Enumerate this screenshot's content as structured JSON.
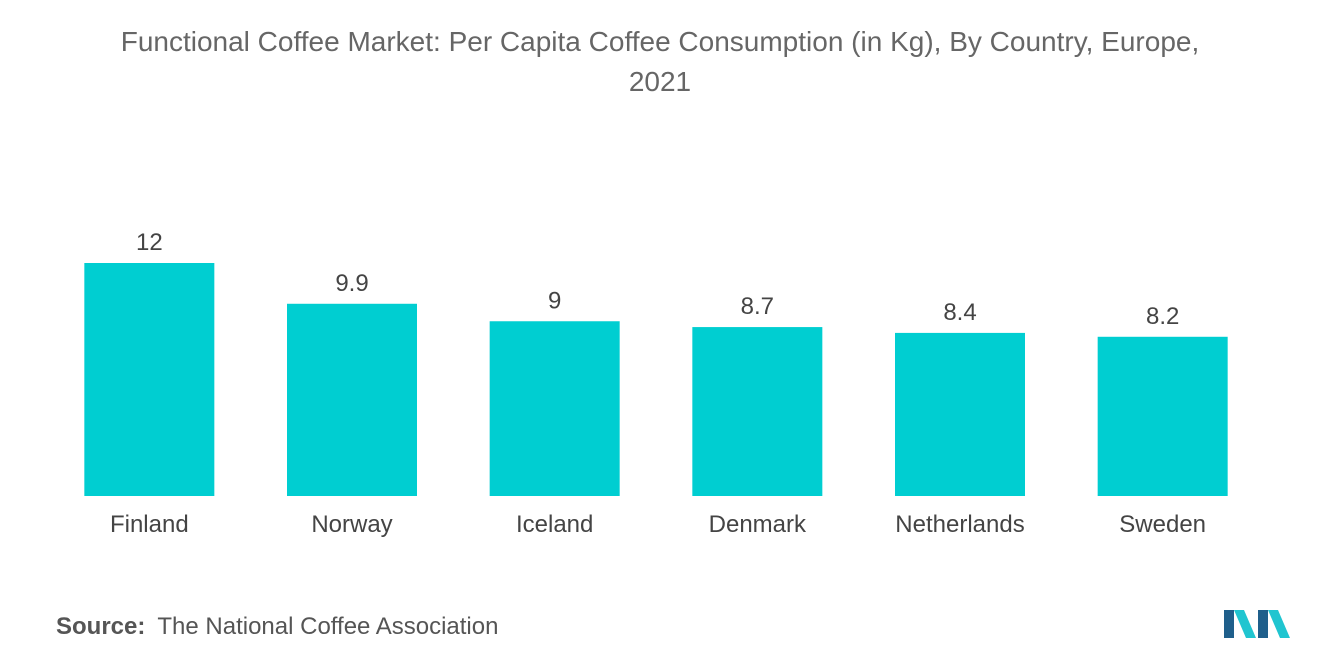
{
  "title_line1": "Functional Coffee Market: Per Capita Coffee Consumption (in Kg), By Country, Europe,",
  "title_line2": "2021",
  "source_label": "Source:",
  "source_text": "The National Coffee Association",
  "logo_icon": "mordor-intelligence-logo-icon",
  "colors": {
    "bar": "#00CED1",
    "logo_dark": "#1F5F8B",
    "logo_light": "#20C5D0"
  },
  "chart_data": {
    "type": "bar",
    "categories": [
      "Finland",
      "Norway",
      "Iceland",
      "Denmark",
      "Netherlands",
      "Sweden"
    ],
    "values": [
      12,
      9.9,
      9,
      8.7,
      8.4,
      8.2
    ],
    "value_labels": [
      "12",
      "9.9",
      "9",
      "8.7",
      "8.4",
      "8.2"
    ],
    "title": "Functional Coffee Market: Per Capita Coffee Consumption (in Kg), By Country, Europe, 2021",
    "xlabel": "",
    "ylabel": "",
    "ylim": [
      0,
      12
    ],
    "grid": false,
    "legend": "none"
  }
}
